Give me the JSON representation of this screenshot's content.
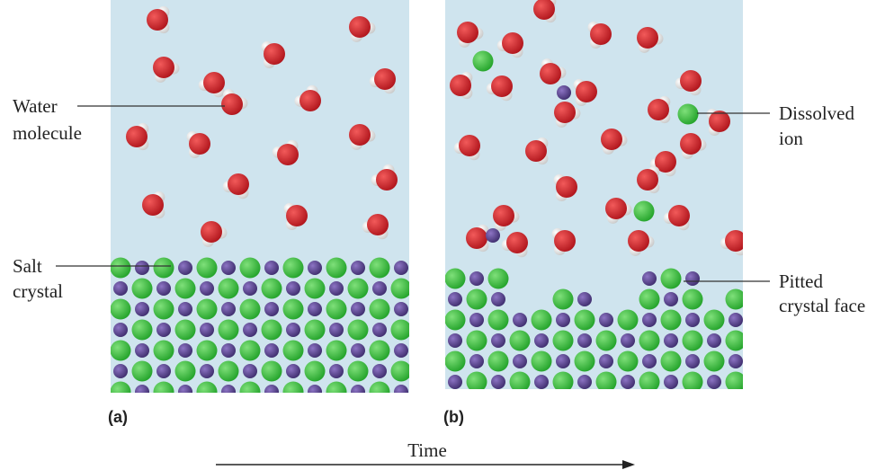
{
  "labels": {
    "water_molecule": [
      "Water",
      "molecule"
    ],
    "salt_crystal": [
      "Salt",
      "crystal"
    ],
    "dissolved_ion": [
      "Dissolved",
      "ion"
    ],
    "pitted_crystal_face": [
      "Pitted",
      "crystal face"
    ]
  },
  "panels": {
    "a": "(a)",
    "b": "(b)"
  },
  "axis": {
    "label": "Time"
  }
}
